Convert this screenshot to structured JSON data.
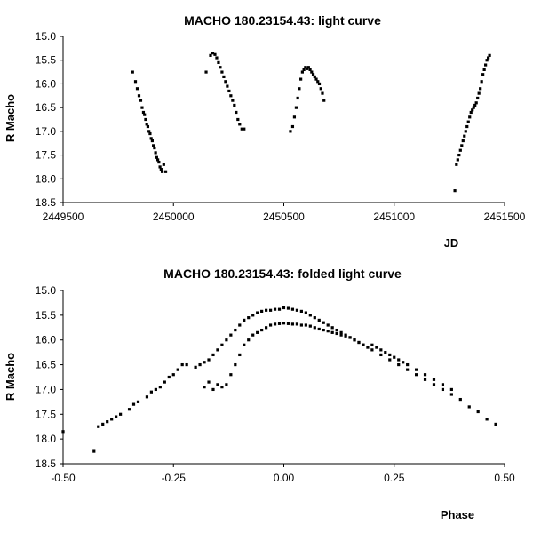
{
  "chart_data": [
    {
      "type": "scatter",
      "title": "MACHO 180.23154.43: light curve",
      "xlabel": "JD",
      "ylabel": "R Macho",
      "xlim": [
        2449500,
        2451500
      ],
      "ylim": [
        15.0,
        18.5
      ],
      "y_reversed": true,
      "grid": false,
      "xticks": [
        "2449500",
        "2450000",
        "2450500",
        "2451000",
        "2451500"
      ],
      "yticks": [
        "15.0",
        "15.5",
        "16.0",
        "16.5",
        "17.0",
        "17.5",
        "18.0",
        "18.5"
      ],
      "x": [
        2449815,
        2449828,
        2449836,
        2449844,
        2449852,
        2449858,
        2449864,
        2449869,
        2449874,
        2449879,
        2449884,
        2449889,
        2449894,
        2449899,
        2449904,
        2449909,
        2449914,
        2449919,
        2449924,
        2449929,
        2449934,
        2449939,
        2449944,
        2449949,
        2449956,
        2449965,
        2450148,
        2450168,
        2450178,
        2450188,
        2450196,
        2450204,
        2450212,
        2450220,
        2450228,
        2450236,
        2450244,
        2450252,
        2450260,
        2450268,
        2450276,
        2450284,
        2450292,
        2450300,
        2450310,
        2450320,
        2450530,
        2450540,
        2450548,
        2450556,
        2450563,
        2450570,
        2450577,
        2450584,
        2450591,
        2450598,
        2450605,
        2450612,
        2450619,
        2450626,
        2450633,
        2450640,
        2450647,
        2450654,
        2450661,
        2450668,
        2450675,
        2450682,
        2451275,
        2451282,
        2451288,
        2451294,
        2451300,
        2451306,
        2451312,
        2451318,
        2451324,
        2451330,
        2451336,
        2451342,
        2451348,
        2451354,
        2451360,
        2451366,
        2451372,
        2451378,
        2451384,
        2451390,
        2451396,
        2451402,
        2451408,
        2451414,
        2451420,
        2451426,
        2451432
      ],
      "y": [
        15.75,
        15.95,
        16.1,
        16.25,
        16.35,
        16.5,
        16.6,
        16.65,
        16.75,
        16.85,
        16.9,
        17.0,
        17.05,
        17.15,
        17.2,
        17.3,
        17.35,
        17.45,
        17.55,
        17.6,
        17.65,
        17.75,
        17.8,
        17.85,
        17.7,
        17.85,
        15.75,
        15.4,
        15.35,
        15.38,
        15.45,
        15.55,
        15.65,
        15.75,
        15.85,
        15.95,
        16.05,
        16.15,
        16.25,
        16.35,
        16.45,
        16.6,
        16.75,
        16.85,
        16.95,
        16.95,
        17.0,
        16.9,
        16.7,
        16.5,
        16.3,
        16.1,
        15.9,
        15.75,
        15.7,
        15.65,
        15.68,
        15.65,
        15.7,
        15.75,
        15.8,
        15.85,
        15.9,
        15.95,
        16.0,
        16.1,
        16.2,
        16.35,
        18.25,
        17.7,
        17.6,
        17.5,
        17.4,
        17.3,
        17.2,
        17.1,
        17.0,
        16.9,
        16.8,
        16.7,
        16.6,
        16.55,
        16.5,
        16.45,
        16.4,
        16.3,
        16.2,
        16.1,
        15.95,
        15.8,
        15.7,
        15.6,
        15.5,
        15.45,
        15.4
      ]
    },
    {
      "type": "scatter",
      "title": "MACHO 180.23154.43: folded light curve",
      "xlabel": "Phase",
      "ylabel": "R Macho",
      "xlim": [
        -0.5,
        0.5
      ],
      "ylim": [
        15.0,
        18.5
      ],
      "y_reversed": true,
      "grid": false,
      "xticks": [
        "-0.50",
        "-0.25",
        "0.00",
        "0.25",
        "0.50"
      ],
      "yticks": [
        "15.0",
        "15.5",
        "16.0",
        "16.5",
        "17.0",
        "17.5",
        "18.0",
        "18.5"
      ],
      "x": [
        -0.5,
        -0.43,
        -0.42,
        -0.41,
        -0.4,
        -0.39,
        -0.38,
        -0.37,
        -0.35,
        -0.34,
        -0.33,
        -0.31,
        -0.3,
        -0.29,
        -0.28,
        -0.27,
        -0.26,
        -0.25,
        -0.24,
        -0.23,
        -0.22,
        -0.2,
        -0.19,
        -0.18,
        -0.17,
        -0.16,
        -0.15,
        -0.14,
        -0.13,
        -0.12,
        -0.11,
        -0.1,
        -0.09,
        -0.08,
        -0.07,
        -0.06,
        -0.05,
        -0.04,
        -0.03,
        -0.02,
        -0.01,
        0.0,
        0.01,
        0.02,
        0.03,
        0.04,
        0.05,
        0.06,
        0.07,
        0.08,
        0.09,
        0.1,
        0.11,
        0.12,
        0.13,
        0.14,
        0.15,
        0.16,
        0.17,
        0.18,
        0.19,
        0.2,
        0.22,
        0.24,
        0.26,
        0.28,
        0.3,
        0.32,
        0.34,
        0.36,
        0.38,
        0.4,
        0.42,
        0.44,
        0.46,
        0.48,
        0.18,
        0.17,
        0.16,
        0.15,
        0.14,
        0.13,
        0.12,
        0.11,
        0.1,
        0.09,
        0.08,
        0.07,
        0.06,
        0.05,
        0.04,
        0.03,
        0.02,
        0.01,
        0.0,
        -0.01,
        -0.02,
        -0.03,
        -0.04,
        -0.05,
        -0.06,
        -0.07,
        -0.08,
        -0.09,
        -0.1,
        -0.11,
        -0.12,
        -0.13,
        -0.14,
        -0.15,
        -0.16,
        -0.17,
        -0.18,
        0.2,
        0.21,
        0.22,
        0.23,
        0.24,
        0.25,
        0.26,
        0.27,
        0.28,
        0.3,
        0.32,
        0.34,
        0.36,
        0.38
      ],
      "y": [
        17.85,
        18.25,
        17.75,
        17.7,
        17.65,
        17.6,
        17.55,
        17.5,
        17.4,
        17.3,
        17.25,
        17.15,
        17.05,
        17.0,
        16.95,
        16.85,
        16.75,
        16.7,
        16.6,
        16.5,
        16.5,
        16.55,
        16.5,
        16.45,
        16.4,
        16.3,
        16.2,
        16.1,
        16.0,
        15.9,
        15.8,
        15.7,
        15.6,
        15.55,
        15.5,
        15.45,
        15.42,
        15.4,
        15.4,
        15.38,
        15.38,
        15.35,
        15.36,
        15.38,
        15.4,
        15.42,
        15.45,
        15.5,
        15.55,
        15.6,
        15.65,
        15.7,
        15.75,
        15.8,
        15.85,
        15.9,
        15.95,
        16.0,
        16.05,
        16.1,
        16.15,
        16.2,
        16.3,
        16.4,
        16.5,
        16.6,
        16.7,
        16.8,
        16.9,
        17.0,
        17.1,
        17.2,
        17.35,
        17.45,
        17.6,
        17.7,
        16.1,
        16.05,
        16.0,
        15.95,
        15.92,
        15.9,
        15.87,
        15.85,
        15.82,
        15.8,
        15.78,
        15.75,
        15.72,
        15.7,
        15.7,
        15.68,
        15.68,
        15.67,
        15.66,
        15.67,
        15.68,
        15.7,
        15.75,
        15.8,
        15.85,
        15.9,
        16.0,
        16.1,
        16.3,
        16.5,
        16.7,
        16.9,
        16.95,
        16.9,
        17.0,
        16.85,
        16.95,
        16.1,
        16.15,
        16.2,
        16.25,
        16.3,
        16.35,
        16.4,
        16.45,
        16.5,
        16.6,
        16.7,
        16.8,
        16.9,
        17.0
      ]
    }
  ]
}
